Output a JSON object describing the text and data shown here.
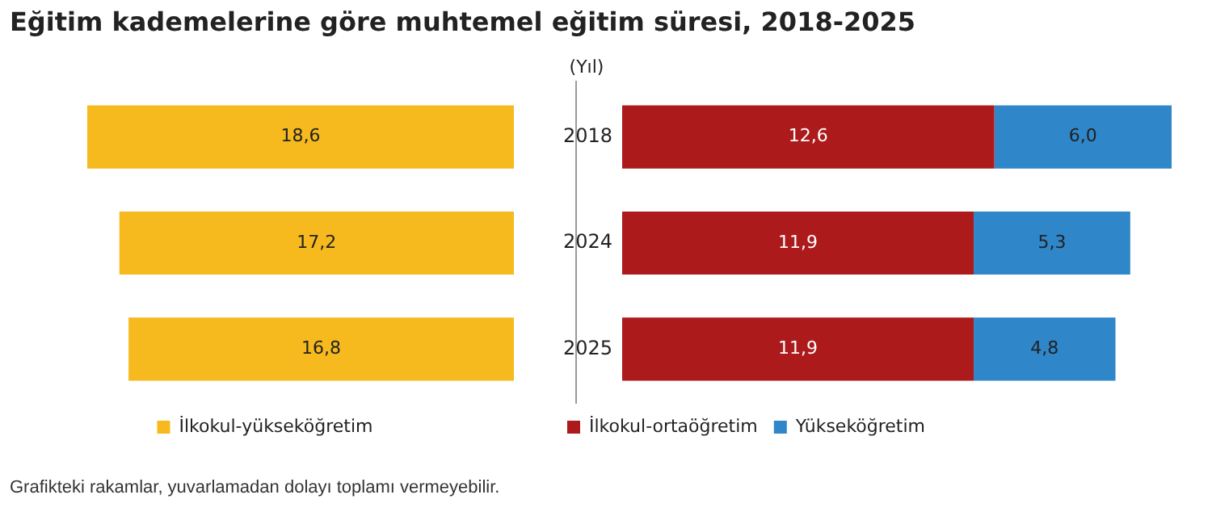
{
  "chart_data": [
    {
      "type": "bar",
      "title": "Eğitim kademelerine göre muhtemel eğitim süresi, 2018-2025",
      "orientation": "horizontal",
      "categories": [
        "2018",
        "2024",
        "2025"
      ],
      "tick_labels": false,
      "grid": false,
      "legend": "bottom",
      "series": [
        {
          "name": "İlkokul-yükseköğretim",
          "color": "#f6b91e",
          "values": [
            18.6,
            17.2,
            16.8
          ],
          "value_labels": [
            "18,6",
            "17,2",
            "16,8"
          ]
        }
      ]
    },
    {
      "type": "bar",
      "orientation": "horizontal",
      "stacked": true,
      "categories": [
        "2018",
        "2024",
        "2025"
      ],
      "ylabel": "(Yıl)",
      "tick_labels": "y",
      "grid": false,
      "legend": "bottom",
      "annotations": [
        "Grafikteki rakamlar, yuvarlamadan dolayı toplamı vermeyebilir."
      ],
      "series": [
        {
          "name": "İlkokul-ortaöğretim",
          "color": "#ac1a1c",
          "values": [
            12.6,
            11.9,
            11.9
          ],
          "value_labels": [
            "12,6",
            "11,9",
            "11,9"
          ]
        },
        {
          "name": "Yükseköğretim",
          "color": "#2f86c9",
          "values": [
            6.0,
            5.3,
            4.8
          ],
          "value_labels": [
            "6,0",
            "5,3",
            "4,8"
          ]
        }
      ]
    }
  ]
}
